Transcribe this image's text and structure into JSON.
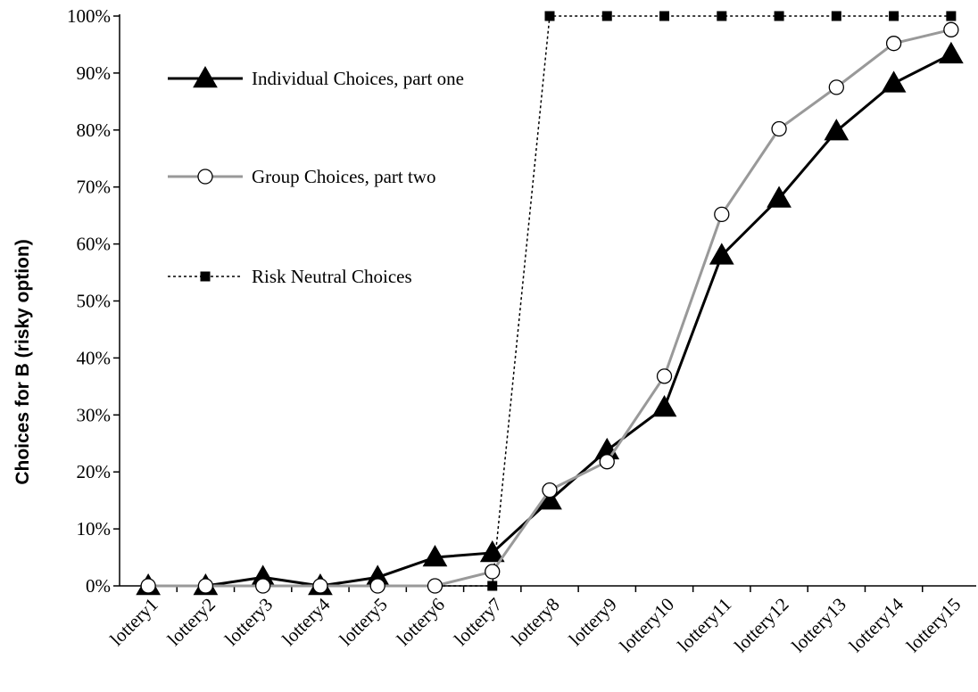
{
  "chart_data": {
    "type": "line",
    "title": "",
    "xlabel": "",
    "ylabel": "Choices for B (risky option)",
    "ylim": [
      0,
      100
    ],
    "y_ticks": [
      "0%",
      "10%",
      "20%",
      "30%",
      "40%",
      "50%",
      "60%",
      "70%",
      "80%",
      "90%",
      "100%"
    ],
    "categories": [
      "lottery1",
      "lottery2",
      "lottery3",
      "lottery4",
      "lottery5",
      "lottery6",
      "lottery7",
      "lottery8",
      "lottery9",
      "lottery10",
      "lottery11",
      "lottery12",
      "lottery13",
      "lottery14",
      "lottery15"
    ],
    "grid": false,
    "legend_position": "left",
    "series": [
      {
        "name": "Individual Choices, part one",
        "values": [
          0,
          0,
          1.5,
          0,
          1.5,
          5,
          5.8,
          15,
          23.8,
          31.3,
          58,
          68,
          79.8,
          88.2,
          93.3
        ],
        "color": "#000000",
        "marker": "triangle-filled",
        "line": "solid"
      },
      {
        "name": "Group Choices, part two",
        "values": [
          0,
          0,
          0,
          0,
          0,
          0,
          2.5,
          16.8,
          21.8,
          36.8,
          65.2,
          80.2,
          87.5,
          95.2,
          97.6
        ],
        "color": "#999999",
        "marker": "circle-open",
        "line": "solid"
      },
      {
        "name": "Risk Neutral Choices",
        "values": [
          0,
          0,
          0,
          0,
          0,
          0,
          0,
          100,
          100,
          100,
          100,
          100,
          100,
          100,
          100
        ],
        "color": "#000000",
        "marker": "square-filled",
        "line": "dotted"
      }
    ]
  }
}
